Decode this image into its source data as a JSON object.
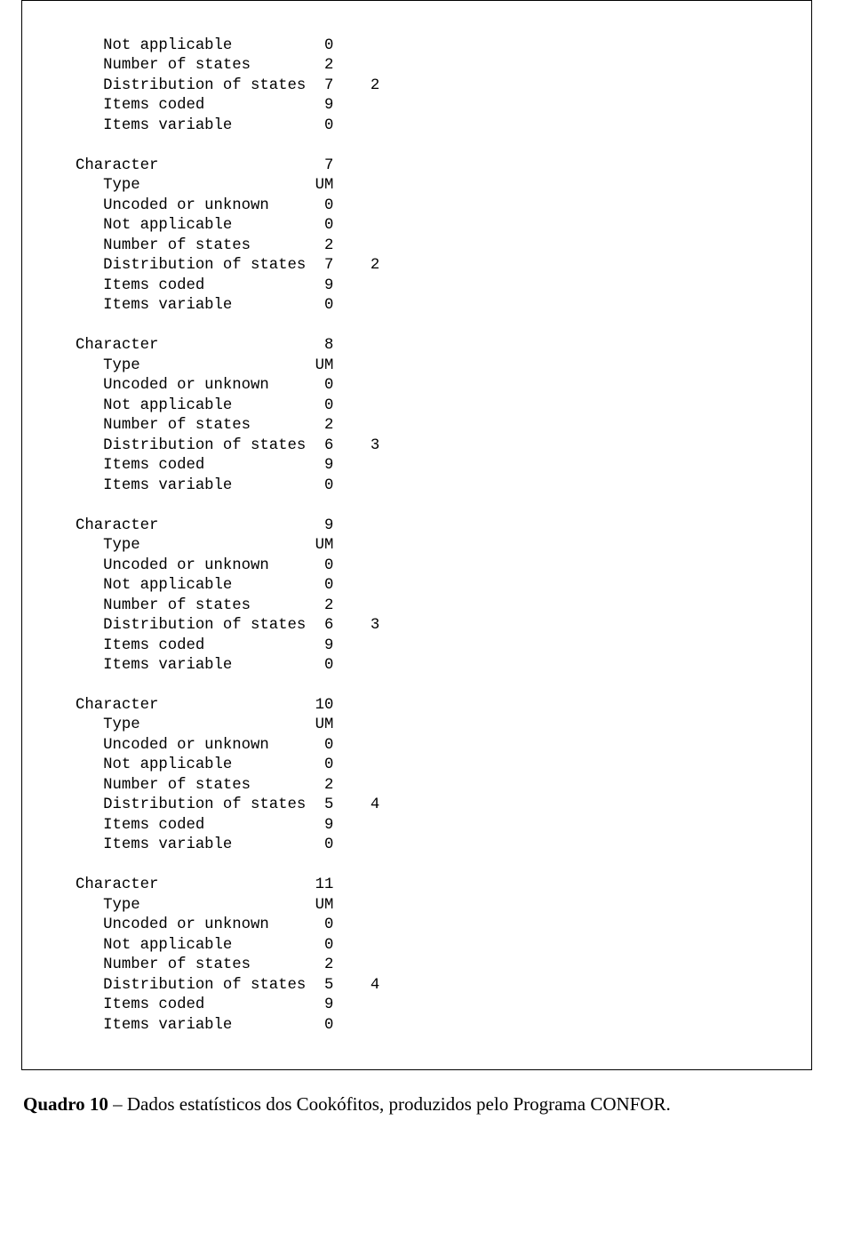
{
  "font": {
    "mono_family": "Courier New",
    "mono_size_pt": 13,
    "serif_family": "Times New Roman",
    "serif_size_pt": 16,
    "text_color": "#000000",
    "background_color": "#ffffff",
    "border_color": "#000000"
  },
  "layout": {
    "col_label_width_ch": 25,
    "col_val1_width_ch": 3,
    "col_gap_ch": 4,
    "indent_ch": 3
  },
  "labels": {
    "character": "Character",
    "type": "Type",
    "uncoded_or_unknown": "Uncoded or unknown",
    "not_applicable": "Not applicable",
    "number_of_states": "Number of states",
    "distribution_of_states": "Distribution of states",
    "items_coded": "Items coded",
    "items_variable": "Items variable"
  },
  "prelude": {
    "not_applicable": "0",
    "number_of_states": "2",
    "distribution_of_states_a": "7",
    "distribution_of_states_b": "2",
    "items_coded": "9",
    "items_variable": "0"
  },
  "blocks": [
    {
      "character": "7",
      "type": "UM",
      "uncoded_or_unknown": "0",
      "not_applicable": "0",
      "number_of_states": "2",
      "distribution_of_states_a": "7",
      "distribution_of_states_b": "2",
      "items_coded": "9",
      "items_variable": "0"
    },
    {
      "character": "8",
      "type": "UM",
      "uncoded_or_unknown": "0",
      "not_applicable": "0",
      "number_of_states": "2",
      "distribution_of_states_a": "6",
      "distribution_of_states_b": "3",
      "items_coded": "9",
      "items_variable": "0"
    },
    {
      "character": "9",
      "type": "UM",
      "uncoded_or_unknown": "0",
      "not_applicable": "0",
      "number_of_states": "2",
      "distribution_of_states_a": "6",
      "distribution_of_states_b": "3",
      "items_coded": "9",
      "items_variable": "0"
    },
    {
      "character": "10",
      "type": "UM",
      "uncoded_or_unknown": "0",
      "not_applicable": "0",
      "number_of_states": "2",
      "distribution_of_states_a": "5",
      "distribution_of_states_b": "4",
      "items_coded": "9",
      "items_variable": "0"
    },
    {
      "character": "11",
      "type": "UM",
      "uncoded_or_unknown": "0",
      "not_applicable": "0",
      "number_of_states": "2",
      "distribution_of_states_a": "5",
      "distribution_of_states_b": "4",
      "items_coded": "9",
      "items_variable": "0"
    }
  ],
  "caption": {
    "bold": "Quadro 10",
    "rest": " – Dados estatísticos dos Cookófitos, produzidos pelo Programa CONFOR."
  }
}
